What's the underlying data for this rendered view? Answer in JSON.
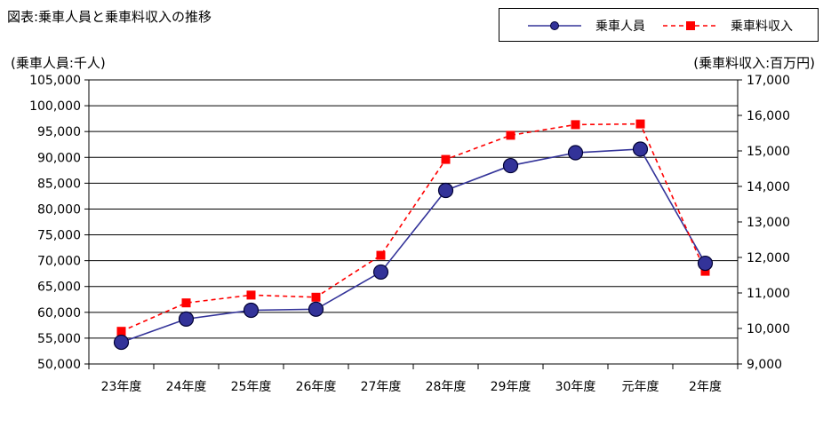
{
  "chart_data": {
    "type": "line",
    "title": "図表:乗車人員と乗車料収入の推移",
    "categories": [
      "23年度",
      "24年度",
      "25年度",
      "26年度",
      "27年度",
      "28年度",
      "29年度",
      "30年度",
      "元年度",
      "2年度"
    ],
    "y_left": {
      "label": "(乗車人員:千人)",
      "ylim": [
        50000,
        105000
      ],
      "ticks": [
        "50,000",
        "55,000",
        "60,000",
        "65,000",
        "70,000",
        "75,000",
        "80,000",
        "85,000",
        "90,000",
        "95,000",
        "100,000",
        "105,000"
      ],
      "tick_values": [
        50000,
        55000,
        60000,
        65000,
        70000,
        75000,
        80000,
        85000,
        90000,
        95000,
        100000,
        105000
      ]
    },
    "y_right": {
      "label": "(乗車料収入:百万円)",
      "ylim": [
        9000,
        17000
      ],
      "ticks": [
        "9,000",
        "10,000",
        "11,000",
        "12,000",
        "13,000",
        "14,000",
        "15,000",
        "16,000",
        "17,000"
      ],
      "tick_values": [
        9000,
        10000,
        11000,
        12000,
        13000,
        14000,
        15000,
        16000,
        17000
      ]
    },
    "series": [
      {
        "name": "乗車人員",
        "axis": "left",
        "color": "#333399",
        "marker_fill": "#333399",
        "style": "solid",
        "marker": "circle",
        "values": [
          54200,
          58700,
          60400,
          60600,
          67800,
          83600,
          88400,
          90900,
          91600,
          69500
        ]
      },
      {
        "name": "乗車料収入",
        "axis": "right",
        "color": "#ff0000",
        "marker_fill": "#ff0000",
        "style": "dashed",
        "marker": "square",
        "values": [
          9920,
          10720,
          10940,
          10880,
          12060,
          14760,
          15440,
          15740,
          15760,
          11610
        ]
      }
    ],
    "grid": true,
    "legend": "top-right"
  }
}
